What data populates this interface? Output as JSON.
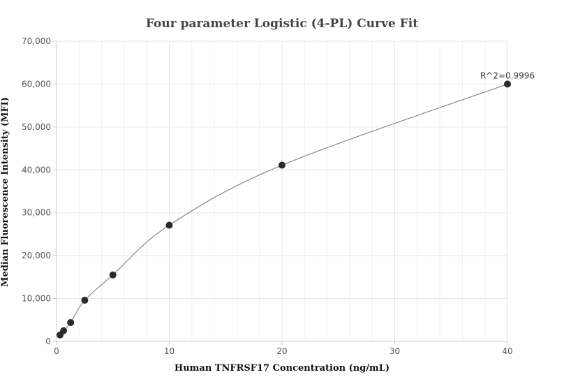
{
  "chart_data": {
    "type": "scatter",
    "title": "Four parameter Logistic (4-PL) Curve Fit",
    "xlabel": "Human TNFRSF17 Concentration (ng/mL)",
    "ylabel": "Median Fluorescence Intensity (MFI)",
    "xlim": [
      0,
      40
    ],
    "ylim": [
      0,
      70000
    ],
    "xticks": [
      0,
      10,
      20,
      30,
      40
    ],
    "xtick_labels": [
      "0",
      "10",
      "20",
      "30",
      "40"
    ],
    "yticks": [
      0,
      10000,
      20000,
      30000,
      40000,
      50000,
      60000,
      70000
    ],
    "ytick_labels": [
      "0",
      "10,000",
      "20,000",
      "30,000",
      "40,000",
      "50,000",
      "60,000",
      "70,000"
    ],
    "grid": true,
    "points": {
      "x": [
        0.3125,
        0.625,
        1.25,
        2.5,
        5,
        10,
        20,
        40
      ],
      "y": [
        1500,
        2500,
        4400,
        9600,
        15500,
        27100,
        41100,
        60000
      ]
    },
    "annotation": "R^2=0.9996",
    "colors": {
      "points": "#2b2b2b",
      "curve": "#888888",
      "grid": "#e6e6e6",
      "axis": "#cccccc"
    }
  }
}
